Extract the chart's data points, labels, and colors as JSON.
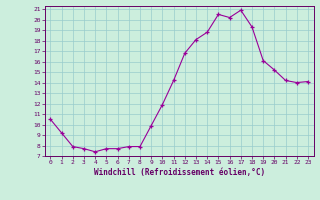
{
  "title": "Windchill (Refroidissement éolien,°C)",
  "x_values": [
    0,
    1,
    2,
    3,
    4,
    5,
    6,
    7,
    8,
    9,
    10,
    11,
    12,
    13,
    14,
    15,
    16,
    17,
    18,
    19,
    20,
    21,
    22,
    23
  ],
  "y_values": [
    10.5,
    9.2,
    7.9,
    7.7,
    7.4,
    7.7,
    7.7,
    7.9,
    7.9,
    9.9,
    11.9,
    14.2,
    16.8,
    18.1,
    18.8,
    20.5,
    20.2,
    20.9,
    19.3,
    16.1,
    15.2,
    14.2,
    14.0,
    14.1
  ],
  "line_color": "#990099",
  "marker_color": "#990099",
  "bg_color": "#cceedd",
  "grid_color": "#99cccc",
  "axis_color": "#660066",
  "tick_color": "#660066",
  "ylim_min": 7,
  "ylim_max": 21,
  "xlim_min": -0.5,
  "xlim_max": 23.5
}
